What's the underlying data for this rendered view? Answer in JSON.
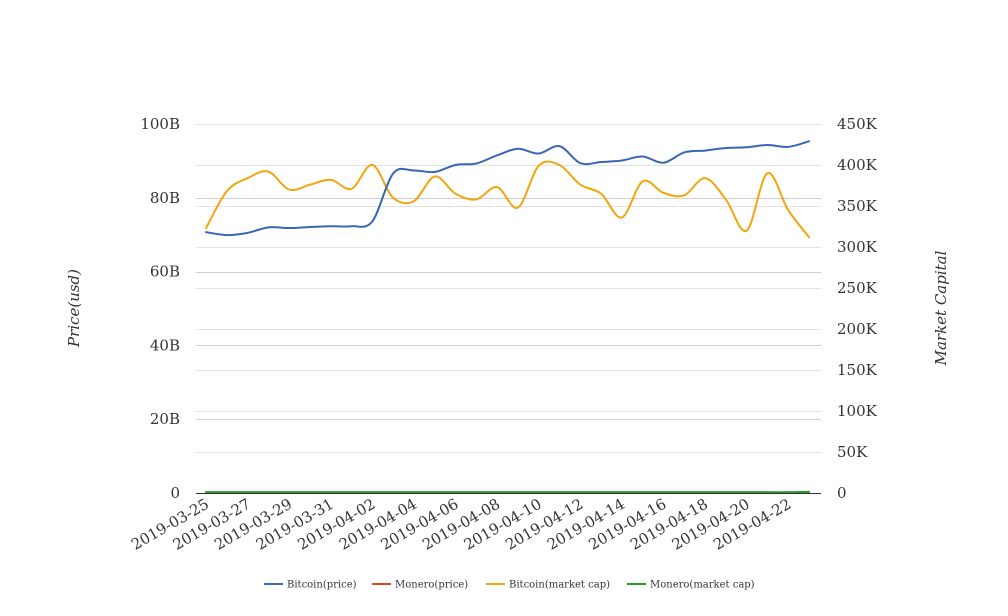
{
  "chart_data": {
    "type": "line",
    "y_left_label": "Price(usd)",
    "y_right_label": "Market Capital",
    "x_tick_labels": [
      "2019-03-25",
      "2019-03-27",
      "2019-03-29",
      "2019-03-31",
      "2019-04-02",
      "2019-04-04",
      "2019-04-06",
      "2019-04-08",
      "2019-04-10",
      "2019-04-12",
      "2019-04-14",
      "2019-04-16",
      "2019-04-18",
      "2019-04-20",
      "2019-04-22"
    ],
    "y_left_ticks": [
      "0",
      "20B",
      "40B",
      "60B",
      "80B",
      "100B"
    ],
    "y_left_tick_values": [
      0,
      20,
      40,
      60,
      80,
      100
    ],
    "y_right_ticks": [
      "0",
      "50K",
      "100K",
      "150K",
      "200K",
      "250K",
      "300K",
      "350K",
      "400K",
      "450K"
    ],
    "y_right_tick_values": [
      0,
      50,
      100,
      150,
      200,
      250,
      300,
      350,
      400,
      450
    ],
    "y_left_range": [
      0,
      100
    ],
    "y_right_range": [
      0,
      450
    ],
    "grid": true,
    "legend_position": "bottom",
    "x_dates": [
      "2019-03-25",
      "2019-03-26",
      "2019-03-27",
      "2019-03-28",
      "2019-03-29",
      "2019-03-30",
      "2019-03-31",
      "2019-04-01",
      "2019-04-02",
      "2019-04-03",
      "2019-04-04",
      "2019-04-05",
      "2019-04-06",
      "2019-04-07",
      "2019-04-08",
      "2019-04-09",
      "2019-04-10",
      "2019-04-11",
      "2019-04-12",
      "2019-04-13",
      "2019-04-14",
      "2019-04-15",
      "2019-04-16",
      "2019-04-17",
      "2019-04-18",
      "2019-04-19",
      "2019-04-20",
      "2019-04-21",
      "2019-04-22",
      "2019-04-23"
    ],
    "series": [
      {
        "name": "Bitcoin(price)",
        "axis": "left",
        "color": "#3a66b5",
        "values": [
          70.7,
          69.9,
          70.5,
          72.0,
          71.8,
          72.1,
          72.3,
          72.3,
          73.6,
          86.6,
          87.4,
          87.0,
          88.9,
          89.3,
          91.5,
          93.3,
          92.0,
          94.0,
          89.4,
          89.7,
          90.1,
          91.2,
          89.5,
          92.3,
          92.8,
          93.5,
          93.7,
          94.3,
          93.8,
          95.3
        ]
      },
      {
        "name": "Monero(price)",
        "axis": "left",
        "color": "#d9432b",
        "values": [
          0.02,
          0.02,
          0.02,
          0.02,
          0.02,
          0.02,
          0.02,
          0.02,
          0.02,
          0.02,
          0.02,
          0.02,
          0.02,
          0.02,
          0.02,
          0.02,
          0.02,
          0.02,
          0.02,
          0.02,
          0.02,
          0.02,
          0.02,
          0.02,
          0.02,
          0.02,
          0.02,
          0.02,
          0.02,
          0.02
        ]
      },
      {
        "name": "Bitcoin(market cap)",
        "axis": "right",
        "color": "#f2a50c",
        "values": [
          323,
          368,
          384,
          392,
          370,
          376,
          382,
          371,
          400,
          360,
          356,
          386,
          365,
          358,
          373,
          348,
          399,
          400,
          376,
          365,
          336,
          380,
          366,
          363,
          384,
          358,
          320,
          390,
          345,
          312
        ]
      },
      {
        "name": "Monero(market cap)",
        "axis": "right",
        "color": "#2a9a2a",
        "values": [
          1,
          1,
          1,
          1,
          1,
          1,
          1,
          1,
          1,
          1,
          1,
          1,
          1,
          1,
          1,
          1,
          1,
          1,
          1,
          1,
          1,
          1,
          1,
          1,
          1,
          1,
          1,
          1,
          1,
          1.5
        ]
      }
    ]
  }
}
